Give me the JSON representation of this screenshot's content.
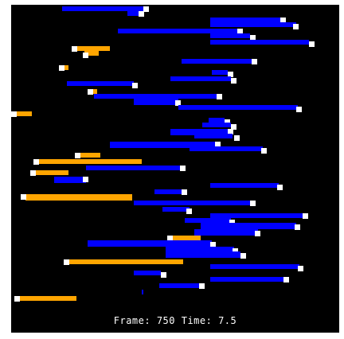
{
  "colors": {
    "background": "#000000",
    "page": "#ffffff",
    "blue_streak": "#0000ff",
    "orange_streak": "#ffa500",
    "particle_head": "#ffffff"
  },
  "status": {
    "text": "Frame: 750 Time: 7.5",
    "frame": 750,
    "time": 7.5
  },
  "scene": {
    "description_fields": [
      "blue streaks",
      "orange streaks",
      "white particle heads"
    ]
  }
}
